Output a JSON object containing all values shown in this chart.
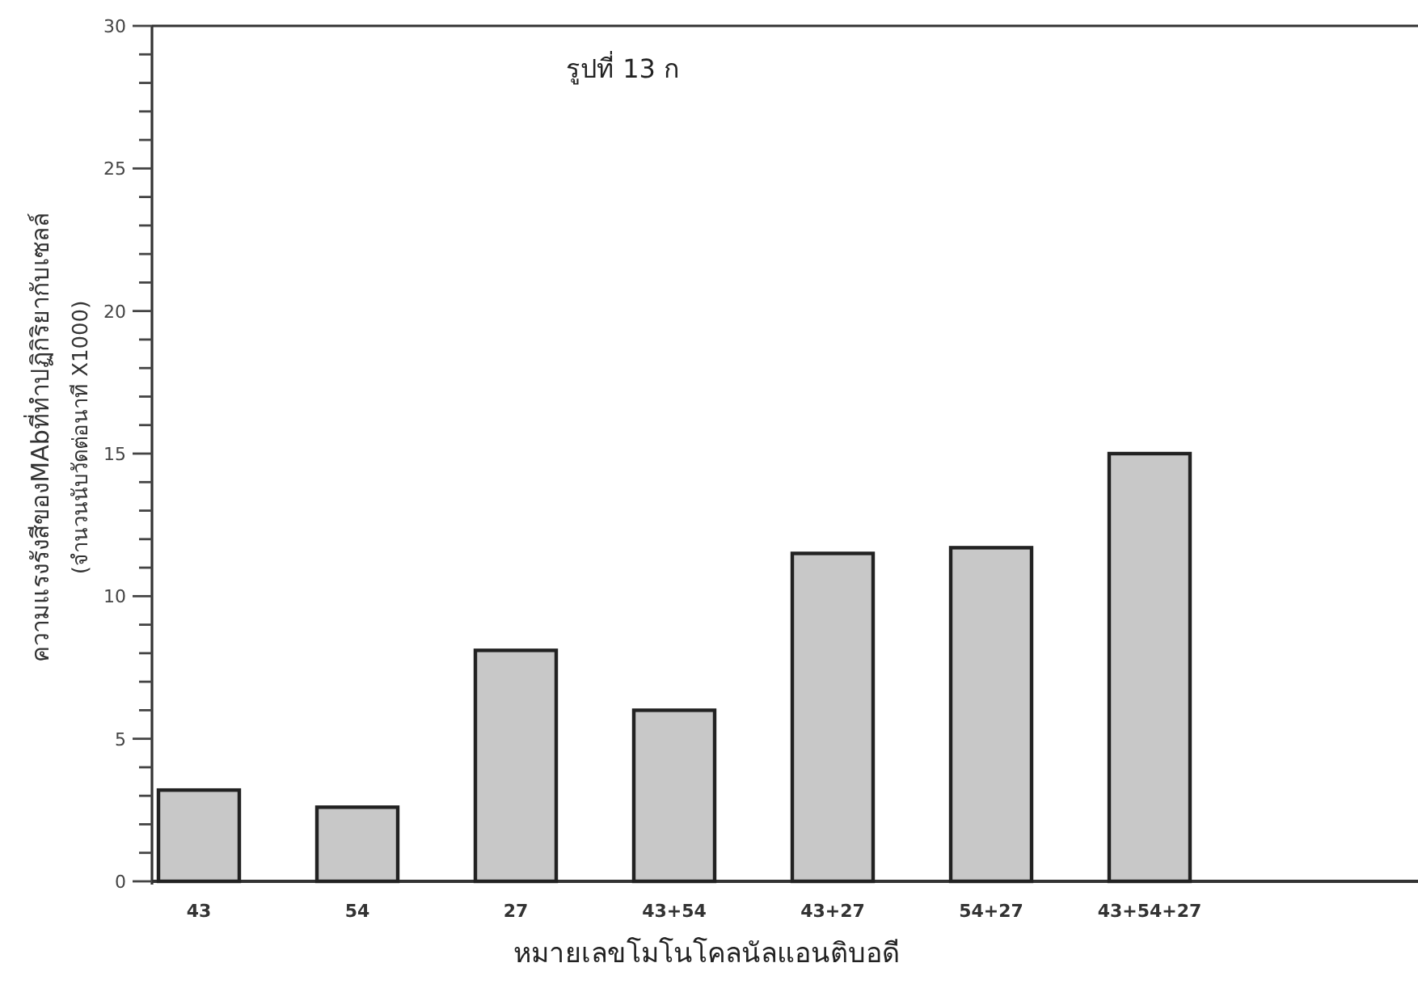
{
  "chart_data": {
    "type": "bar",
    "title": "รูปที่ 13 ก",
    "xlabel": "หมายเลขโมโนโคลนัลแอนติบอดี",
    "ylabel": "ความแรงรังสีของMAbที่ทำปฏิกิริยากับเซลล์\n(จำนวนนับวัดต่อนาที X1000)",
    "categories": [
      "43",
      "54",
      "27",
      "43+54",
      "43+27",
      "54+27",
      "43+54+27"
    ],
    "values": [
      3.2,
      2.6,
      8.1,
      6.0,
      11.5,
      11.7,
      15.0
    ],
    "color": "#c8c8c8",
    "ylim": [
      0,
      30
    ],
    "yticks": [
      0,
      {
        "value": 1,
        "label": null
      },
      {
        "value": 2,
        "label": null
      },
      {
        "value": 3,
        "label": null
      },
      {
        "value": 4,
        "label": null
      },
      5,
      {
        "value": 6,
        "label": null
      },
      {
        "value": 7,
        "label": null
      },
      {
        "value": 8,
        "label": null
      },
      {
        "value": 9,
        "label": null
      },
      10,
      {
        "value": 11,
        "label": null
      },
      {
        "value": 12,
        "label": null
      },
      {
        "value": 13,
        "label": null
      },
      {
        "value": 14,
        "label": null
      },
      15,
      {
        "value": 16,
        "label": null
      },
      {
        "value": 17,
        "label": null
      },
      {
        "value": 18,
        "label": null
      },
      {
        "value": 19,
        "label": null
      },
      20,
      {
        "value": 21,
        "label": null
      },
      {
        "value": 22,
        "label": null
      },
      {
        "value": 23,
        "label": null
      },
      {
        "value": 24,
        "label": null
      },
      25,
      {
        "value": 26,
        "label": null
      },
      {
        "value": 27,
        "label": null
      },
      {
        "value": 28,
        "label": null
      },
      {
        "value": 29,
        "label": null
      },
      30
    ],
    "grid": false
  }
}
